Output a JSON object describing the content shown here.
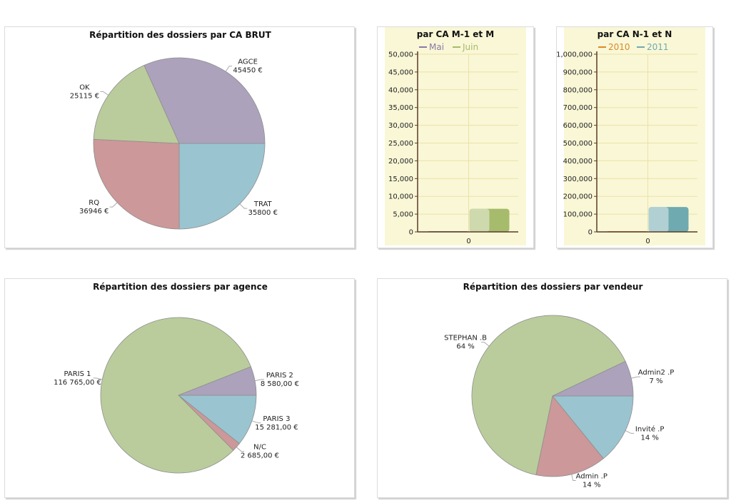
{
  "chart_data": [
    {
      "id": "ca_brut",
      "type": "pie",
      "title": "Répartition des dossiers par CA BRUT",
      "slices": [
        {
          "name": "TRAT",
          "value": 35800,
          "text": "35800 €",
          "color": "#9ac4d0"
        },
        {
          "name": "RQ",
          "value": 36946,
          "text": "36946 €",
          "color": "#cc9899"
        },
        {
          "name": "OK",
          "value": 25115,
          "text": "25115 €",
          "color": "#bacc9c"
        },
        {
          "name": "AGCE",
          "value": 45450,
          "text": "45450 €",
          "color": "#aca2bc"
        }
      ]
    },
    {
      "id": "ca_m",
      "type": "bar",
      "title": "par CA M-1 et M",
      "categories": [
        "0"
      ],
      "series": [
        {
          "name": "Mai",
          "values": [
            0
          ],
          "color": "#8a7aa6"
        },
        {
          "name": "Juin",
          "values": [
            6500
          ],
          "color": "#a6bb6c"
        }
      ],
      "ylim": [
        0,
        50000
      ],
      "yticks": [
        "0",
        "5,000",
        "10,000",
        "15,000",
        "20,000",
        "25,000",
        "30,000",
        "35,000",
        "40,000",
        "45,000",
        "50,000"
      ],
      "legend": "top",
      "grid": true,
      "background": "#f9f7d6"
    },
    {
      "id": "ca_n",
      "type": "bar",
      "title": "par CA N-1 et N",
      "categories": [
        "0"
      ],
      "series": [
        {
          "name": "2010",
          "values": [
            0
          ],
          "color": "#d98a2b"
        },
        {
          "name": "2011",
          "values": [
            140000
          ],
          "color": "#6faab0"
        }
      ],
      "ylim": [
        0,
        1000000
      ],
      "yticks": [
        "0",
        "100,000",
        "200,000",
        "300,000",
        "400,000",
        "500,000",
        "600,000",
        "700,000",
        "800,000",
        "900,000",
        "1,000,000"
      ],
      "legend": "top",
      "grid": true,
      "background": "#f9f7d6"
    },
    {
      "id": "agence",
      "type": "pie",
      "title": "Répartition des dossiers par agence",
      "slices": [
        {
          "name": "PARIS 3",
          "value": 15281,
          "text": "15 281,00 €",
          "color": "#9ac4d0"
        },
        {
          "name": "N/C",
          "value": 2685,
          "text": "2 685,00 €",
          "color": "#cc9899"
        },
        {
          "name": "PARIS 1",
          "value": 116765,
          "text": "116 765,00 €",
          "color": "#bacc9c"
        },
        {
          "name": "PARIS 2",
          "value": 8580,
          "text": "8 580,00 €",
          "color": "#aca2bc"
        }
      ]
    },
    {
      "id": "vendeur",
      "type": "pie",
      "title": "Répartition des dossiers par vendeur",
      "slices": [
        {
          "name": "Invité .P",
          "value": 14,
          "text": "14 %",
          "color": "#9ac4d0"
        },
        {
          "name": "Admin .P",
          "value": 14,
          "text": "14 %",
          "color": "#cc9899"
        },
        {
          "name": "STEPHAN .B",
          "value": 64,
          "text": "64 %",
          "color": "#bacc9c"
        },
        {
          "name": "Admin2 .P",
          "value": 7,
          "text": "7 %",
          "color": "#aca2bc"
        }
      ]
    }
  ]
}
